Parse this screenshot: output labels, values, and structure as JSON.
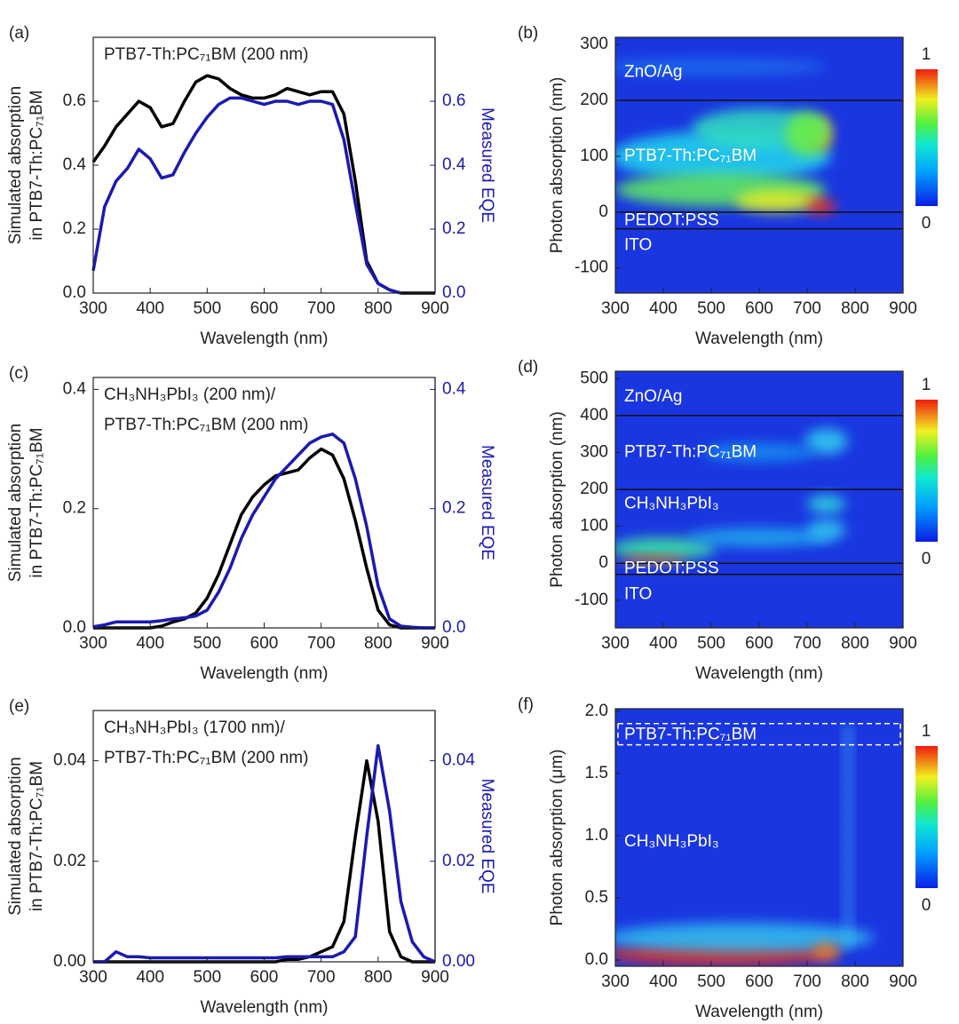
{
  "chart_data": [
    {
      "type": "line",
      "panel": "(a)",
      "annotation": [
        "PTB7-Th:PC₇₁BM (200 nm)"
      ],
      "x_label": "Wavelength (nm)",
      "y_label": [
        "Simulated absorption",
        "in PTB7-Th:PC₇₁BM"
      ],
      "y2_label": "Measured EQE",
      "xlim": [
        300,
        900
      ],
      "xticks": [
        300,
        400,
        500,
        600,
        700,
        800,
        900
      ],
      "ylim": [
        0,
        0.8
      ],
      "yticks": [
        {
          "value": 0,
          "label": "0.0"
        },
        0.2,
        0.4,
        0.6
      ],
      "y2lim": [
        0,
        0.8
      ],
      "y2ticks": [
        {
          "value": 0,
          "label": "0.0"
        },
        0.2,
        0.4,
        0.6
      ],
      "x": [
        300,
        320,
        340,
        360,
        380,
        400,
        420,
        440,
        460,
        480,
        500,
        520,
        540,
        560,
        580,
        600,
        620,
        640,
        660,
        680,
        700,
        720,
        740,
        760,
        780,
        800,
        820,
        840,
        860,
        880,
        900
      ],
      "series": [
        {
          "name": "Simulated absorption",
          "color": "#000000",
          "values": [
            0.41,
            0.46,
            0.52,
            0.56,
            0.6,
            0.58,
            0.52,
            0.53,
            0.6,
            0.66,
            0.68,
            0.67,
            0.64,
            0.62,
            0.61,
            0.61,
            0.62,
            0.64,
            0.63,
            0.62,
            0.63,
            0.63,
            0.56,
            0.35,
            0.1,
            0.03,
            0.01,
            0,
            0,
            0,
            0
          ]
        },
        {
          "name": "Measured EQE",
          "color": "#1a1ab4",
          "axis": "y2",
          "values": [
            0.07,
            0.27,
            0.35,
            0.39,
            0.45,
            0.42,
            0.36,
            0.37,
            0.44,
            0.5,
            0.55,
            0.59,
            0.61,
            0.61,
            0.6,
            0.59,
            0.6,
            0.6,
            0.59,
            0.6,
            0.6,
            0.59,
            0.48,
            0.28,
            0.09,
            0.03,
            0.01,
            0,
            null,
            null,
            null
          ]
        }
      ]
    },
    {
      "type": "heatmap",
      "panel": "(b)",
      "x_label": "Wavelength (nm)",
      "y_label": "Photon absorption (nm)",
      "xlim": [
        300,
        900
      ],
      "xticks": [
        300,
        400,
        500,
        600,
        700,
        800,
        900
      ],
      "ylim": [
        -145,
        313
      ],
      "yticks": [
        -100,
        0,
        100,
        200,
        300
      ],
      "boundaries": [
        200,
        0,
        -30
      ],
      "boundary_style": "solid",
      "layer_labels": [
        "ZnO/Ag",
        "PTB7-Th:PC₇₁BM",
        "PEDOT:PSS",
        "ITO"
      ],
      "clim": [
        0,
        1
      ],
      "colorbar_ticks": [
        0,
        1
      ]
    },
    {
      "type": "line",
      "panel": "(c)",
      "annotation": [
        "CH₃NH₃PbI₃ (200 nm)/",
        "PTB7-Th:PC₇₁BM (200 nm)"
      ],
      "x_label": "Wavelength (nm)",
      "y_label": [
        "Simulated absorption",
        "in PTB7-Th:PC₇₁BM"
      ],
      "y2_label": "Measured EQE",
      "xlim": [
        300,
        900
      ],
      "xticks": [
        300,
        400,
        500,
        600,
        700,
        800,
        900
      ],
      "ylim": [
        0,
        0.42
      ],
      "yticks": [
        {
          "value": 0,
          "label": "0.0"
        },
        0.2,
        0.4
      ],
      "y2lim": [
        0,
        0.42
      ],
      "y2ticks": [
        {
          "value": 0,
          "label": "0.0"
        },
        0.2,
        0.4
      ],
      "x": [
        300,
        320,
        340,
        360,
        380,
        400,
        420,
        440,
        460,
        480,
        500,
        520,
        540,
        560,
        580,
        600,
        620,
        640,
        660,
        680,
        700,
        720,
        740,
        760,
        780,
        800,
        820,
        840,
        860,
        880,
        900
      ],
      "series": [
        {
          "name": "Simulated absorption",
          "color": "#000000",
          "values": [
            0,
            0,
            0,
            0,
            0,
            0,
            0.003,
            0.01,
            0.015,
            0.025,
            0.05,
            0.09,
            0.14,
            0.19,
            0.22,
            0.24,
            0.255,
            0.26,
            0.265,
            0.285,
            0.3,
            0.29,
            0.25,
            0.18,
            0.1,
            0.03,
            0.005,
            0,
            0,
            0,
            0
          ]
        },
        {
          "name": "Measured EQE",
          "color": "#1a1ab4",
          "axis": "y2",
          "values": [
            0.002,
            0.005,
            0.01,
            0.01,
            0.01,
            0.01,
            0.012,
            0.015,
            0.017,
            0.02,
            0.03,
            0.06,
            0.1,
            0.15,
            0.19,
            0.22,
            0.25,
            0.27,
            0.29,
            0.31,
            0.32,
            0.325,
            0.31,
            0.25,
            0.17,
            0.07,
            0.015,
            0.003,
            0.001,
            0,
            0
          ]
        }
      ]
    },
    {
      "type": "heatmap",
      "panel": "(d)",
      "x_label": "Wavelength (nm)",
      "y_label": "Photon absorption (nm)",
      "xlim": [
        300,
        900
      ],
      "xticks": [
        300,
        400,
        500,
        600,
        700,
        800,
        900
      ],
      "ylim": [
        -175,
        520
      ],
      "yticks": [
        -100,
        0,
        100,
        200,
        300,
        400,
        500
      ],
      "boundaries": [
        400,
        200,
        0,
        -30
      ],
      "boundary_style": "solid",
      "layer_labels": [
        "ZnO/Ag",
        "PTB7-Th:PC₇₁BM",
        "CH₃NH₃PbI₃",
        "PEDOT:PSS",
        "ITO"
      ],
      "clim": [
        0,
        1
      ],
      "colorbar_ticks": [
        0,
        1
      ]
    },
    {
      "type": "line",
      "panel": "(e)",
      "annotation": [
        "CH₃NH₃PbI₃ (1700 nm)/",
        "PTB7-Th:PC₇₁BM (200 nm)"
      ],
      "x_label": "Wavelength (nm)",
      "y_label": [
        "Simulated absorption",
        "in PTB7-Th:PC₇₁BM"
      ],
      "y2_label": "Measured EQE",
      "xlim": [
        300,
        900
      ],
      "xticks": [
        300,
        400,
        500,
        600,
        700,
        800,
        900
      ],
      "ylim": [
        0,
        0.05
      ],
      "yticks": [
        {
          "value": 0,
          "label": "0.00"
        },
        {
          "value": 0.02,
          "label": "0.02"
        },
        {
          "value": 0.04,
          "label": "0.04"
        }
      ],
      "y2lim": [
        0,
        0.05
      ],
      "y2ticks": [
        {
          "value": 0,
          "label": "0.00"
        },
        {
          "value": 0.02,
          "label": "0.02"
        },
        {
          "value": 0.04,
          "label": "0.04"
        }
      ],
      "x": [
        300,
        320,
        340,
        360,
        380,
        400,
        420,
        440,
        460,
        480,
        500,
        520,
        540,
        560,
        580,
        600,
        620,
        640,
        660,
        680,
        700,
        720,
        740,
        760,
        780,
        800,
        820,
        840,
        860,
        880,
        900
      ],
      "series": [
        {
          "name": "Simulated absorption",
          "color": "#000000",
          "values": [
            0,
            0,
            0,
            0,
            0,
            0,
            0,
            0,
            0,
            0,
            0,
            0,
            0,
            0,
            0,
            0,
            0,
            0.0005,
            0.0005,
            0.001,
            0.002,
            0.003,
            0.008,
            0.025,
            0.04,
            0.028,
            0.006,
            0.001,
            0,
            0,
            0
          ]
        },
        {
          "name": "Measured EQE",
          "color": "#1a1ab4",
          "axis": "y2",
          "values": [
            0,
            0,
            0.002,
            0.001,
            0.001,
            0.0008,
            0.0008,
            0.0008,
            0.0008,
            0.0008,
            0.0008,
            0.0008,
            0.0008,
            0.0008,
            0.0008,
            0.0008,
            0.0008,
            0.001,
            0.001,
            0.001,
            0.001,
            0.001,
            0.002,
            0.005,
            0.025,
            0.043,
            0.03,
            0.012,
            0.004,
            0.001,
            0
          ]
        }
      ]
    },
    {
      "type": "heatmap",
      "panel": "(f)",
      "x_label": "Wavelength (nm)",
      "y_label": "Photon absorption (μm)",
      "xlim": [
        300,
        900
      ],
      "xticks": [
        300,
        400,
        500,
        600,
        700,
        800,
        900
      ],
      "ylim": [
        -0.05,
        2.02
      ],
      "yticks": [
        {
          "value": 0,
          "label": "0.0"
        },
        0.5,
        {
          "value": 1,
          "label": "1.0"
        },
        1.5,
        {
          "value": 2,
          "label": "2.0"
        }
      ],
      "boundaries": [
        1.9,
        1.73
      ],
      "boundary_style": "dashed",
      "layer_labels": [
        "PTB7-Th:PC₇₁BM",
        "CH₃NH₃PbI₃"
      ],
      "clim": [
        0,
        1
      ],
      "colorbar_ticks": [
        0,
        1
      ]
    }
  ]
}
